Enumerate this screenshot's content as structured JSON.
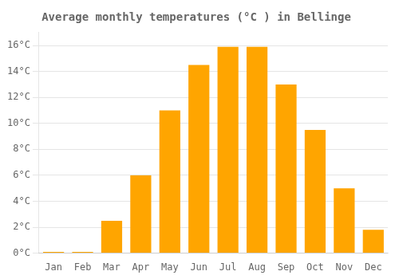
{
  "chart_data": {
    "type": "bar",
    "title": "Average monthly temperatures (°C ) in Bellinge",
    "categories": [
      "Jan",
      "Feb",
      "Mar",
      "Apr",
      "May",
      "Jun",
      "Jul",
      "Aug",
      "Sep",
      "Oct",
      "Nov",
      "Dec"
    ],
    "values": [
      0.1,
      0.1,
      2.5,
      6.0,
      11.0,
      14.5,
      15.9,
      15.9,
      13.0,
      9.5,
      5.0,
      1.8
    ],
    "color": "#FFA500",
    "ylim": [
      0,
      17
    ],
    "yticks": [
      {
        "value": 0,
        "label": "0°C"
      },
      {
        "value": 2,
        "label": "2°C"
      },
      {
        "value": 4,
        "label": "4°C"
      },
      {
        "value": 6,
        "label": "6°C"
      },
      {
        "value": 8,
        "label": "8°C"
      },
      {
        "value": 10,
        "label": "10°C"
      },
      {
        "value": 12,
        "label": "12°C"
      },
      {
        "value": 14,
        "label": "14°C"
      },
      {
        "value": 16,
        "label": "16°C"
      }
    ],
    "grid": true
  }
}
